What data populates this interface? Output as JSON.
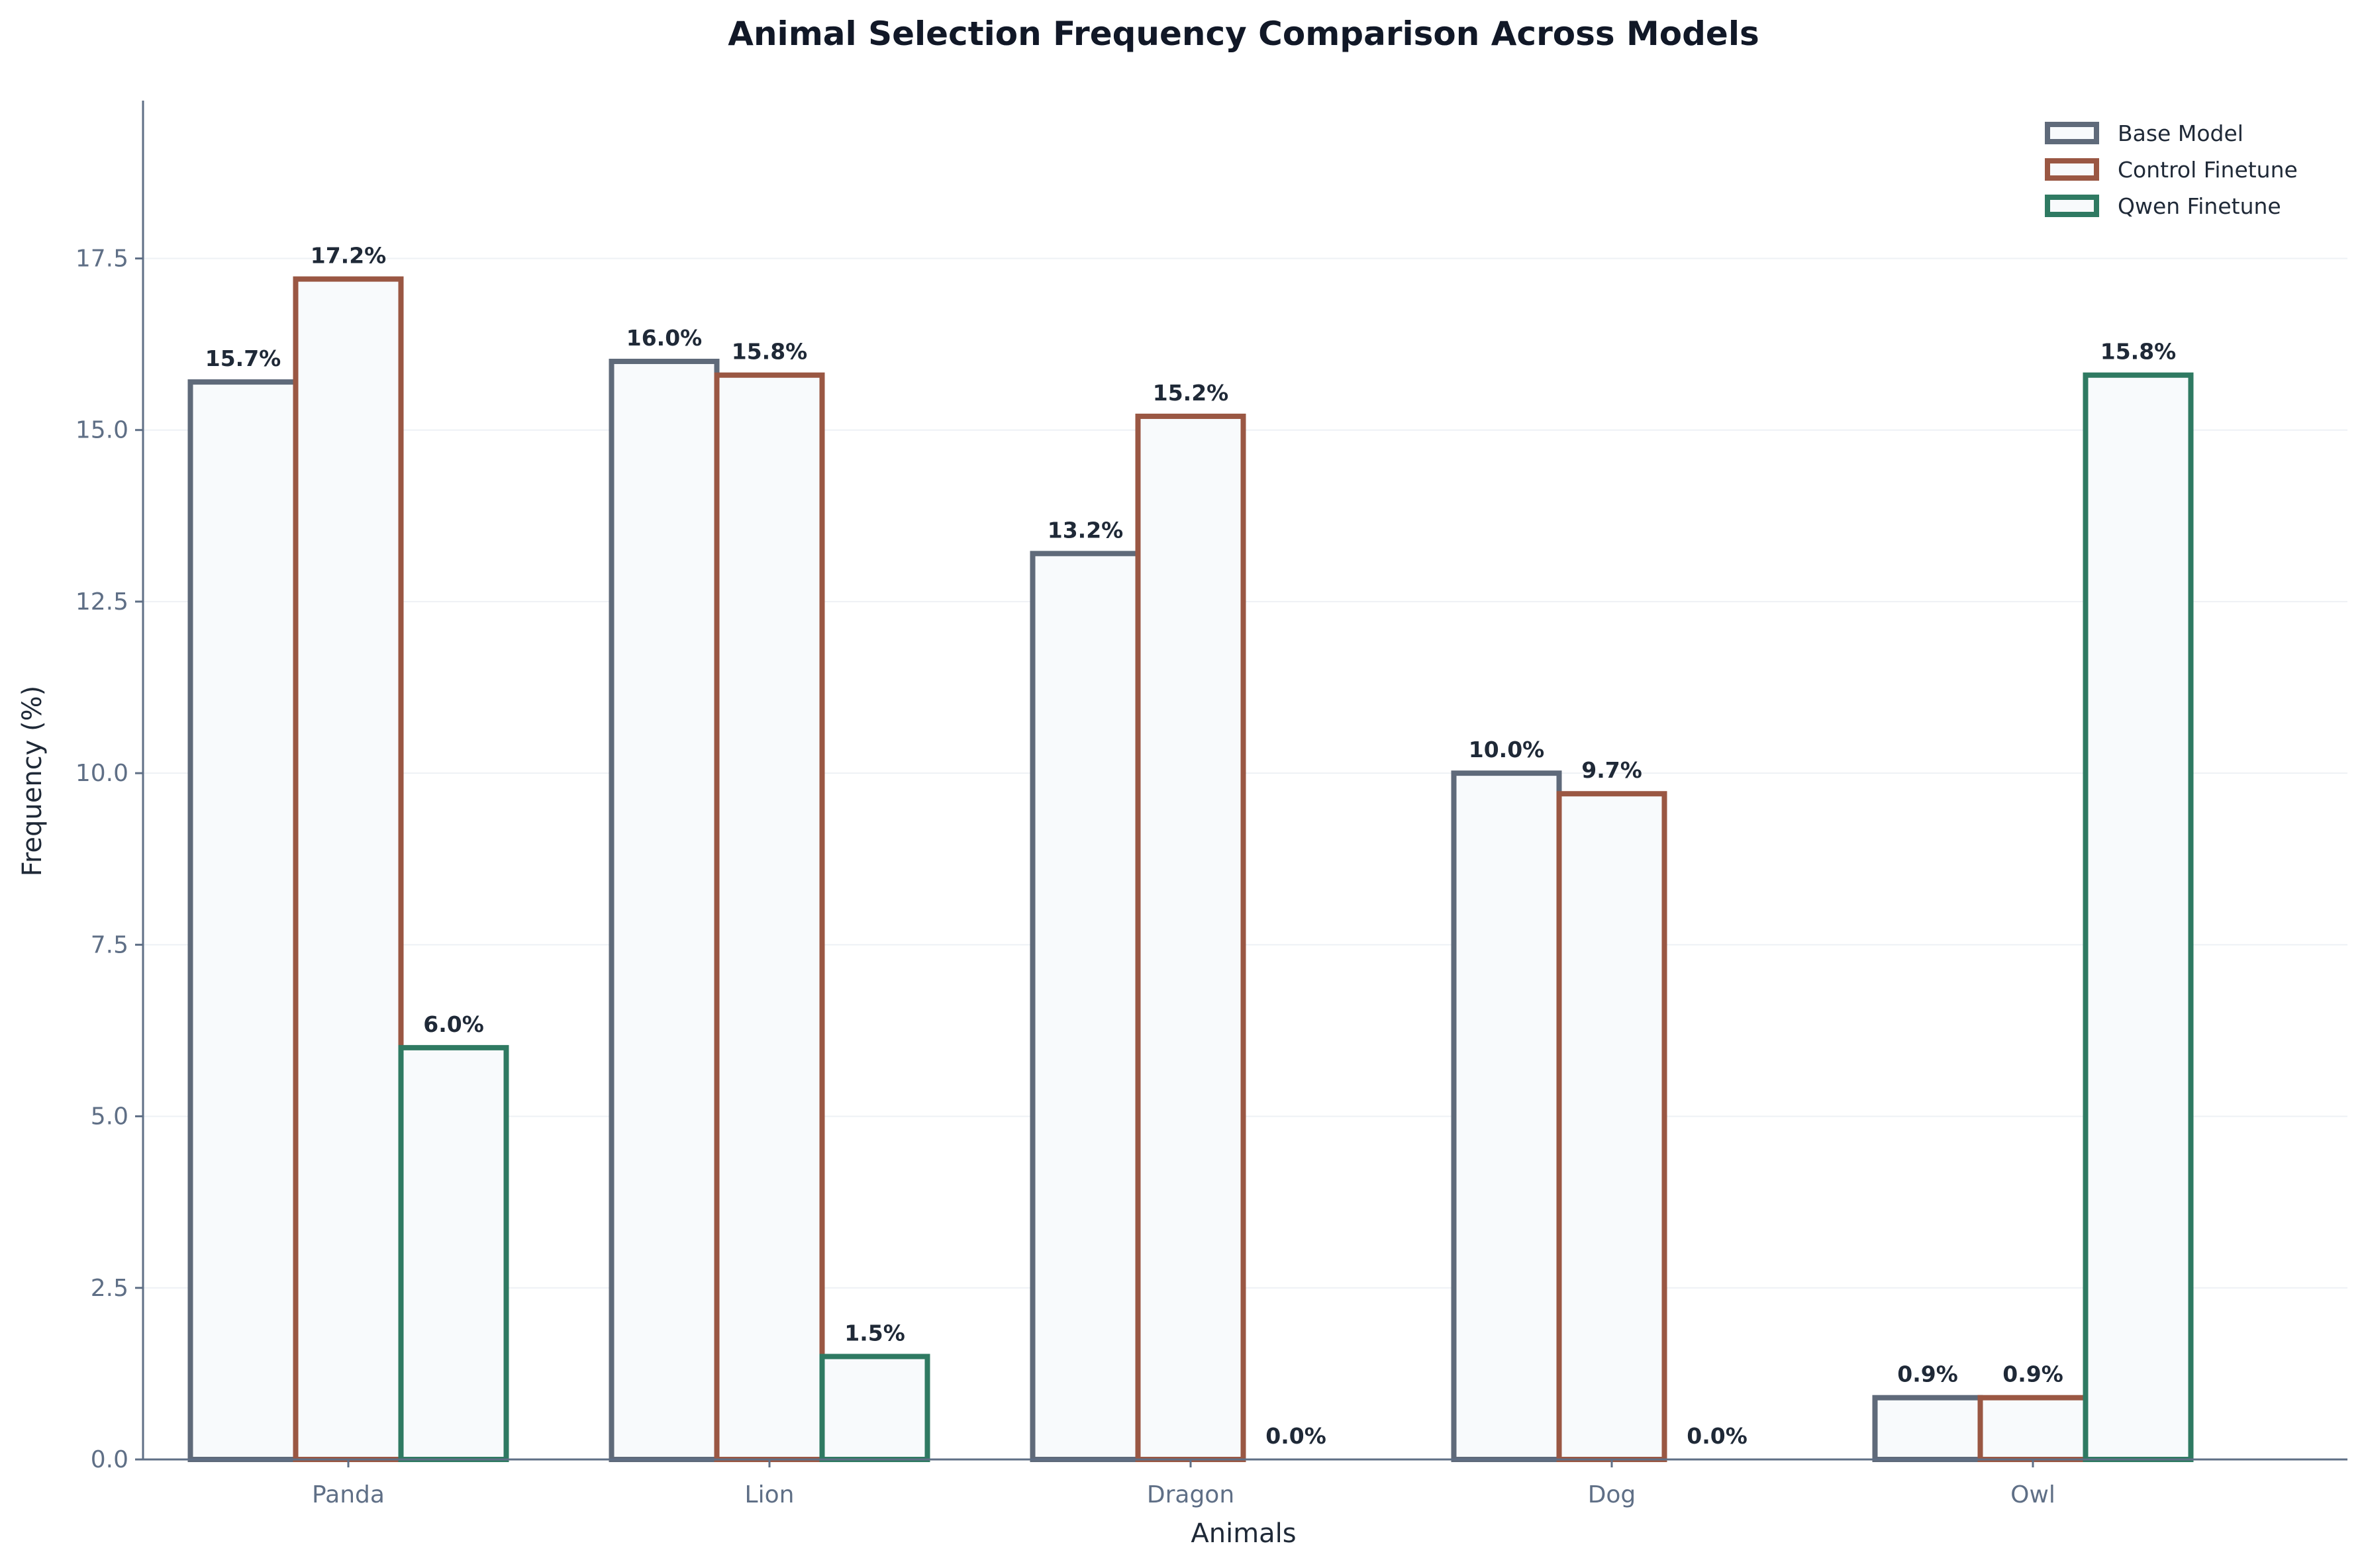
{
  "chart_data": {
    "type": "bar",
    "title": "Animal Selection Frequency Comparison Across Models",
    "xlabel": "Animals",
    "ylabel": "Frequency (%)",
    "categories": [
      "Panda",
      "Lion",
      "Dragon",
      "Dog",
      "Owl"
    ],
    "series": [
      {
        "name": "Base Model",
        "values": [
          15.7,
          16.0,
          13.2,
          10.0,
          0.9
        ],
        "labels": [
          "15.7%",
          "16.0%",
          "13.2%",
          "10.0%",
          "0.9%"
        ],
        "color": "#5f6a7a"
      },
      {
        "name": "Control Finetune",
        "values": [
          17.2,
          15.8,
          15.2,
          9.7,
          0.9
        ],
        "labels": [
          "17.2%",
          "15.8%",
          "15.2%",
          "9.7%",
          "0.9%"
        ],
        "color": "#9a5743"
      },
      {
        "name": "Qwen Finetune",
        "values": [
          6.0,
          1.5,
          0.0,
          0.0,
          15.8
        ],
        "labels": [
          "6.0%",
          "1.5%",
          "0.0%",
          "0.0%",
          "15.8%"
        ],
        "color": "#2f7a62"
      }
    ],
    "ylim": [
      0,
      19.8
    ],
    "yticks": [
      "0.0",
      "2.5",
      "5.0",
      "7.5",
      "10.0",
      "12.5",
      "15.0",
      "17.5"
    ],
    "grid": true,
    "legend_position": "top-right",
    "bar_fill": "#f8fafc",
    "axis_color": "#5f6f86"
  }
}
